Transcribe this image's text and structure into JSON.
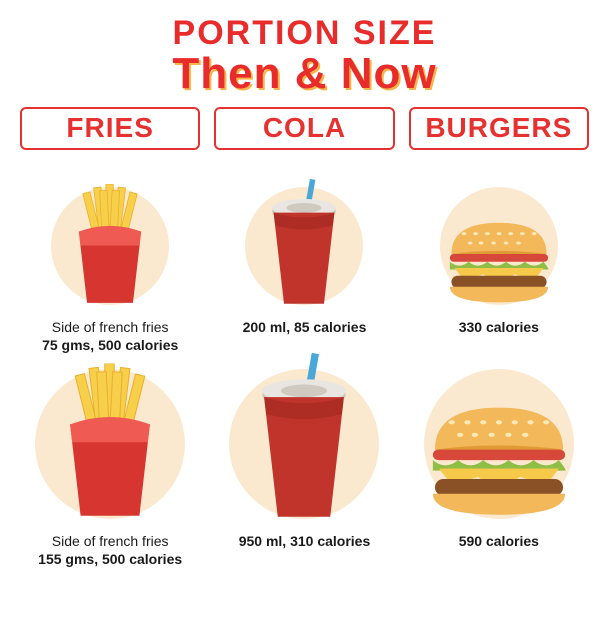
{
  "type": "infographic",
  "title_line1": "PORTION SIZE",
  "title_line2": "Then & Now",
  "title_color": "#e82c2c",
  "title_shadow": "#f7b54a",
  "background_color": "#ffffff",
  "accent_red": "#e63131",
  "header_text_color": "#e63131",
  "header_border_color": "#e63131",
  "circle_bg": "#fbe9cf",
  "caption_color": "#1a1a1a",
  "columns": [
    {
      "key": "fries",
      "label": "FRIES"
    },
    {
      "key": "cola",
      "label": "COLA"
    },
    {
      "key": "burgers",
      "label": "BURGERS"
    }
  ],
  "items": {
    "fries": {
      "then": {
        "line1": "Side of french fries",
        "line2": "75 gms, 500 calories",
        "circle_d": 118,
        "icon_scale": 0.82
      },
      "now": {
        "line1": "Side of french fries",
        "line2": "155 gms, 500 calories",
        "circle_d": 150,
        "icon_scale": 1.05
      }
    },
    "cola": {
      "then": {
        "line1": "",
        "line2": "200 ml, 85 calories",
        "circle_d": 118,
        "icon_scale": 0.8
      },
      "now": {
        "line1": "",
        "line2": "950 ml, 310 calories",
        "circle_d": 150,
        "icon_scale": 1.05
      }
    },
    "burgers": {
      "then": {
        "line1": "",
        "line2": "330 calories",
        "circle_d": 118,
        "icon_scale": 0.78
      },
      "now": {
        "line1": "",
        "line2": "590 calories",
        "circle_d": 150,
        "icon_scale": 1.05
      }
    }
  },
  "icon_colors": {
    "fries_box": "#d6362f",
    "fries_box_stripe": "#ef5b52",
    "fries_fry": "#f7cf4b",
    "fries_fry_edge": "#e8b22d",
    "cup_body": "#c0342b",
    "cup_lid": "#e9e6e1",
    "cup_lid_shadow": "#cfc9bf",
    "straw": "#4aa8d8",
    "bun": "#f2b85a",
    "bun_shadow": "#e09c34",
    "patty": "#8a5026",
    "cheese": "#f6c94a",
    "lettuce": "#8fbe46",
    "tomato": "#d8483a",
    "seed": "#fce9b8"
  }
}
